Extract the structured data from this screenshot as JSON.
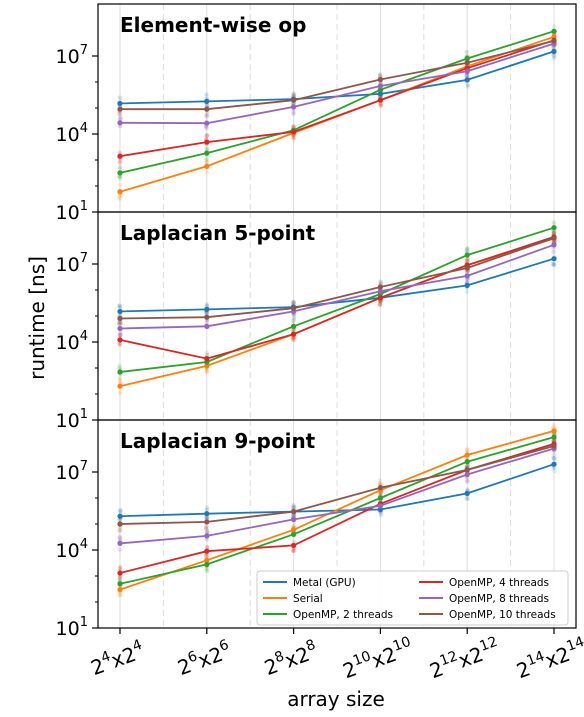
{
  "figure": {
    "xlabel": "array size",
    "ylabel": "runtime [ns]"
  },
  "colors": {
    "Metal (GPU)": "#1f77b4",
    "Serial": "#ff7f0e",
    "OpenMP, 2 threads": "#2ca02c",
    "OpenMP, 4 threads": "#d62728",
    "OpenMP, 8 threads": "#9467bd",
    "OpenMP, 10 threads": "#8c564b"
  },
  "legend": [
    "Metal (GPU)",
    "Serial",
    "OpenMP, 2 threads",
    "OpenMP, 4 threads",
    "OpenMP, 8 threads",
    "OpenMP, 10 threads"
  ],
  "x_ticks": [
    {
      "base": "2",
      "exp": "4"
    },
    {
      "base": "2",
      "exp": "6"
    },
    {
      "base": "2",
      "exp": "8"
    },
    {
      "base": "2",
      "exp": "10"
    },
    {
      "base": "2",
      "exp": "12"
    },
    {
      "base": "2",
      "exp": "14"
    }
  ],
  "y_ticks": [
    {
      "value": 10,
      "base": "10",
      "exp": "1"
    },
    {
      "value": 10000,
      "base": "10",
      "exp": "4"
    },
    {
      "value": 10000000,
      "base": "10",
      "exp": "7"
    }
  ],
  "chart_data": [
    {
      "type": "line",
      "title": "Element-wise op",
      "x": [
        "2^4x2^4",
        "2^6x2^6",
        "2^8x2^8",
        "2^10x2^10",
        "2^12x2^12",
        "2^14x2^14"
      ],
      "y_scale": "log",
      "ylim": [
        10,
        1000000000
      ],
      "grid": "x",
      "series": [
        {
          "name": "Metal (GPU)",
          "values": [
            150000,
            180000,
            220000,
            350000,
            1200000,
            15000000
          ]
        },
        {
          "name": "Serial",
          "values": [
            60,
            570,
            11000,
            200000,
            4000000,
            55000000
          ]
        },
        {
          "name": "OpenMP, 2 threads",
          "values": [
            320,
            1850,
            14000,
            500000,
            8000000,
            90000000
          ]
        },
        {
          "name": "OpenMP, 4 threads",
          "values": [
            1400,
            4900,
            12000,
            200000,
            3400000,
            40000000
          ]
        },
        {
          "name": "OpenMP, 8 threads",
          "values": [
            27000,
            26000,
            110000,
            700000,
            2600000,
            30000000
          ]
        },
        {
          "name": "OpenMP, 10 threads",
          "values": [
            90000,
            90000,
            200000,
            1250000,
            5500000,
            38000000
          ]
        }
      ]
    },
    {
      "type": "line",
      "title": "Laplacian 5-point",
      "x": [
        "2^4x2^4",
        "2^6x2^6",
        "2^8x2^8",
        "2^10x2^10",
        "2^12x2^12",
        "2^14x2^14"
      ],
      "y_scale": "log",
      "ylim": [
        10,
        1000000000
      ],
      "grid": "x",
      "series": [
        {
          "name": "Metal (GPU)",
          "values": [
            150000,
            180000,
            220000,
            500000,
            1500000,
            16000000
          ]
        },
        {
          "name": "Serial",
          "values": [
            200,
            1200,
            20000,
            500000,
            9000000,
            95000000
          ]
        },
        {
          "name": "OpenMP, 2 threads",
          "values": [
            700,
            1700,
            40000,
            700000,
            22000000,
            250000000
          ]
        },
        {
          "name": "OpenMP, 4 threads",
          "values": [
            12000,
            2300,
            20000,
            500000,
            9000000,
            110000000
          ]
        },
        {
          "name": "OpenMP, 8 threads",
          "values": [
            33000,
            40000,
            150000,
            900000,
            3500000,
            55000000
          ]
        },
        {
          "name": "OpenMP, 10 threads",
          "values": [
            80000,
            90000,
            200000,
            1300000,
            7000000,
            100000000
          ]
        }
      ]
    },
    {
      "type": "line",
      "title": "Laplacian 9-point",
      "x": [
        "2^4x2^4",
        "2^6x2^6",
        "2^8x2^8",
        "2^10x2^10",
        "2^12x2^12",
        "2^14x2^14"
      ],
      "y_scale": "log",
      "ylim": [
        10,
        1000000000
      ],
      "grid": "x",
      "legend_position": "lower-right",
      "series": [
        {
          "name": "Metal (GPU)",
          "values": [
            200000,
            250000,
            300000,
            360000,
            1500000,
            20000000
          ]
        },
        {
          "name": "Serial",
          "values": [
            300,
            4000,
            60000,
            2000000,
            45000000,
            380000000
          ]
        },
        {
          "name": "OpenMP, 2 threads",
          "values": [
            500,
            2800,
            40000,
            1000000,
            25000000,
            220000000
          ]
        },
        {
          "name": "OpenMP, 4 threads",
          "values": [
            1300,
            9000,
            15000,
            600000,
            12000000,
            120000000
          ]
        },
        {
          "name": "OpenMP, 8 threads",
          "values": [
            18000,
            35000,
            150000,
            500000,
            8000000,
            80000000
          ]
        },
        {
          "name": "OpenMP, 10 threads",
          "values": [
            100000,
            120000,
            300000,
            2500000,
            12000000,
            100000000
          ]
        }
      ]
    }
  ]
}
